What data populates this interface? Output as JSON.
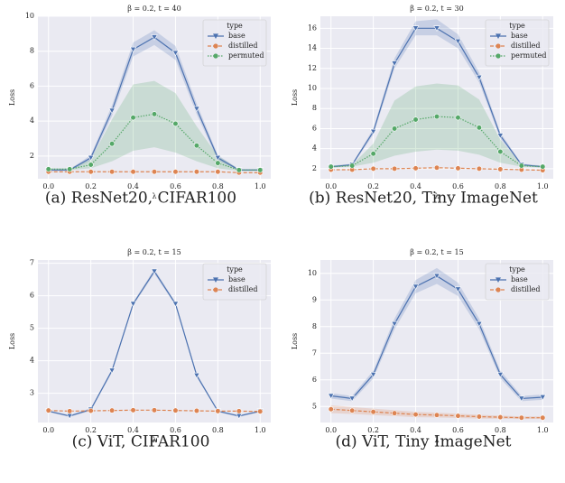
{
  "chart_data": [
    {
      "type": "line",
      "title": "β = 0.2, t = 40",
      "xlabel": "λ",
      "ylabel": "Loss",
      "caption": "(a) ResNet20, CIFAR100",
      "legend_title": "type",
      "legend": "upper right",
      "grid": true,
      "x": [
        0,
        0.1,
        0.2,
        0.3,
        0.4,
        0.5,
        0.6,
        0.7,
        0.8,
        0.9,
        1
      ],
      "xlim": [
        -0.05,
        1.05
      ],
      "xticks": [
        {
          "value": 0,
          "label": "0.0"
        },
        {
          "value": 0.2,
          "label": "0.2"
        },
        {
          "value": 0.4,
          "label": "0.4"
        },
        {
          "value": 0.6,
          "label": "0.6"
        },
        {
          "value": 0.8,
          "label": "0.8"
        },
        {
          "value": 1,
          "label": "1.0"
        }
      ],
      "ylim": [
        0.7,
        10
      ],
      "yticks": [
        2,
        4,
        6,
        8,
        10
      ],
      "series": [
        {
          "name": "base",
          "color": "#4c72b0",
          "marker": "triangle",
          "dash": "solid",
          "values": [
            1.2,
            1.2,
            1.9,
            4.6,
            8.1,
            8.8,
            7.9,
            4.7,
            1.9,
            1.2,
            1.2
          ],
          "band_lower": [
            1.15,
            1.15,
            1.75,
            4.3,
            7.7,
            8.35,
            7.5,
            4.4,
            1.75,
            1.15,
            1.15
          ],
          "band_upper": [
            1.25,
            1.25,
            2.05,
            4.9,
            8.5,
            9.2,
            8.3,
            5.0,
            2.05,
            1.25,
            1.25
          ]
        },
        {
          "name": "distilled",
          "color": "#dd8452",
          "marker": "circle",
          "dash": "dashed",
          "values": [
            1.1,
            1.1,
            1.1,
            1.1,
            1.1,
            1.1,
            1.1,
            1.1,
            1.1,
            1.05,
            1.05
          ]
        },
        {
          "name": "permuted",
          "color": "#55a868",
          "marker": "circle",
          "dash": "dotted",
          "values": [
            1.25,
            1.25,
            1.5,
            2.7,
            4.2,
            4.4,
            3.85,
            2.6,
            1.6,
            1.2,
            1.2
          ],
          "band_lower": [
            1.2,
            1.2,
            1.3,
            1.7,
            2.3,
            2.5,
            2.2,
            1.7,
            1.3,
            1.15,
            1.15
          ],
          "band_upper": [
            1.3,
            1.3,
            1.8,
            4.1,
            6.1,
            6.3,
            5.6,
            3.7,
            2.0,
            1.25,
            1.25
          ]
        }
      ]
    },
    {
      "type": "line",
      "title": "β = 0.2, t = 30",
      "xlabel": "λ",
      "ylabel": "Loss",
      "caption": "(b) ResNet20, Tiny ImageNet",
      "legend_title": "type",
      "legend": "upper right",
      "grid": true,
      "x": [
        0,
        0.1,
        0.2,
        0.3,
        0.4,
        0.5,
        0.6,
        0.7,
        0.8,
        0.9,
        1
      ],
      "xlim": [
        -0.05,
        1.05
      ],
      "xticks": [
        {
          "value": 0,
          "label": "0.0"
        },
        {
          "value": 0.2,
          "label": "0.2"
        },
        {
          "value": 0.4,
          "label": "0.4"
        },
        {
          "value": 0.6,
          "label": "0.6"
        },
        {
          "value": 0.8,
          "label": "0.8"
        },
        {
          "value": 1,
          "label": "1.0"
        }
      ],
      "ylim": [
        1,
        17.2
      ],
      "yticks": [
        2,
        4,
        6,
        8,
        10,
        12,
        14,
        16
      ],
      "series": [
        {
          "name": "base",
          "color": "#4c72b0",
          "marker": "triangle",
          "dash": "solid",
          "values": [
            2.2,
            2.4,
            5.7,
            12.5,
            16,
            16,
            14.7,
            11.1,
            5.3,
            2.4,
            2.2
          ],
          "band_lower": [
            2.1,
            2.3,
            5.4,
            12.0,
            15.3,
            15.3,
            14.0,
            10.6,
            5.0,
            2.3,
            2.1
          ],
          "band_upper": [
            2.3,
            2.5,
            6.0,
            13.0,
            16.7,
            16.9,
            15.4,
            11.6,
            5.6,
            2.5,
            2.3
          ]
        },
        {
          "name": "distilled",
          "color": "#dd8452",
          "marker": "circle",
          "dash": "dashed",
          "values": [
            1.9,
            1.9,
            2.0,
            2.0,
            2.05,
            2.1,
            2.05,
            2.0,
            1.95,
            1.9,
            1.85
          ]
        },
        {
          "name": "permuted",
          "color": "#55a868",
          "marker": "circle",
          "dash": "dotted",
          "values": [
            2.2,
            2.3,
            3.5,
            6.0,
            6.9,
            7.2,
            7.1,
            6.1,
            3.7,
            2.3,
            2.2
          ],
          "band_lower": [
            2.1,
            2.2,
            2.6,
            3.3,
            3.7,
            3.9,
            3.8,
            3.4,
            2.6,
            2.2,
            2.1
          ],
          "band_upper": [
            2.3,
            2.4,
            4.5,
            8.8,
            10.2,
            10.5,
            10.3,
            8.9,
            4.9,
            2.4,
            2.3
          ]
        }
      ]
    },
    {
      "type": "line",
      "title": "β = 0.2, t = 15",
      "xlabel": "λ",
      "ylabel": "Loss",
      "caption": "(c) ViT, CIFAR100",
      "legend_title": "type",
      "legend": "upper right",
      "grid": true,
      "x": [
        0,
        0.1,
        0.2,
        0.3,
        0.4,
        0.5,
        0.6,
        0.7,
        0.8,
        0.9,
        1
      ],
      "xlim": [
        -0.05,
        1.05
      ],
      "xticks": [
        {
          "value": 0,
          "label": "0.0"
        },
        {
          "value": 0.2,
          "label": "0.2"
        },
        {
          "value": 0.4,
          "label": "0.4"
        },
        {
          "value": 0.6,
          "label": "0.6"
        },
        {
          "value": 0.8,
          "label": "0.8"
        },
        {
          "value": 1,
          "label": "1.0"
        }
      ],
      "ylim": [
        2.1,
        7.1
      ],
      "yticks": [
        3,
        4,
        5,
        6,
        7
      ],
      "series": [
        {
          "name": "base",
          "color": "#4c72b0",
          "marker": "triangle",
          "dash": "solid",
          "values": [
            2.45,
            2.3,
            2.5,
            3.7,
            5.75,
            6.75,
            5.75,
            3.55,
            2.45,
            2.3,
            2.45
          ],
          "band_lower": [
            2.42,
            2.27,
            2.46,
            3.65,
            5.7,
            6.68,
            5.7,
            3.5,
            2.42,
            2.27,
            2.42
          ],
          "band_upper": [
            2.48,
            2.33,
            2.54,
            3.75,
            5.8,
            6.82,
            5.8,
            3.6,
            2.48,
            2.33,
            2.48
          ]
        },
        {
          "name": "distilled",
          "color": "#dd8452",
          "marker": "circle",
          "dash": "dashed",
          "values": [
            2.47,
            2.45,
            2.46,
            2.47,
            2.48,
            2.48,
            2.47,
            2.46,
            2.45,
            2.45,
            2.44
          ]
        }
      ]
    },
    {
      "type": "line",
      "title": "β = 0.2, t = 15",
      "xlabel": "λ",
      "ylabel": "Loss",
      "caption": "(d) ViT, Tiny ImageNet",
      "legend_title": "type",
      "legend": "upper right",
      "grid": true,
      "x": [
        0,
        0.1,
        0.2,
        0.3,
        0.4,
        0.5,
        0.6,
        0.7,
        0.8,
        0.9,
        1
      ],
      "xlim": [
        -0.05,
        1.05
      ],
      "xticks": [
        {
          "value": 0,
          "label": "0.0"
        },
        {
          "value": 0.2,
          "label": "0.2"
        },
        {
          "value": 0.4,
          "label": "0.4"
        },
        {
          "value": 0.6,
          "label": "0.6"
        },
        {
          "value": 0.8,
          "label": "0.8"
        },
        {
          "value": 1,
          "label": "1.0"
        }
      ],
      "ylim": [
        4.4,
        10.5
      ],
      "yticks": [
        5,
        6,
        7,
        8,
        9,
        10
      ],
      "series": [
        {
          "name": "base",
          "color": "#4c72b0",
          "marker": "triangle",
          "dash": "solid",
          "values": [
            5.4,
            5.3,
            6.2,
            8.1,
            9.5,
            9.9,
            9.4,
            8.1,
            6.2,
            5.3,
            5.35
          ],
          "band_lower": [
            5.3,
            5.2,
            6.05,
            7.9,
            9.25,
            9.6,
            9.15,
            7.9,
            6.05,
            5.2,
            5.25
          ],
          "band_upper": [
            5.5,
            5.4,
            6.35,
            8.3,
            9.75,
            10.2,
            9.65,
            8.3,
            6.35,
            5.4,
            5.45
          ]
        },
        {
          "name": "distilled",
          "color": "#dd8452",
          "marker": "circle",
          "dash": "dashed",
          "values": [
            4.9,
            4.85,
            4.8,
            4.75,
            4.7,
            4.68,
            4.65,
            4.62,
            4.6,
            4.58,
            4.58
          ],
          "band_lower": [
            4.75,
            4.72,
            4.68,
            4.64,
            4.6,
            4.59,
            4.57,
            4.55,
            4.54,
            4.53,
            4.53
          ],
          "band_upper": [
            5.05,
            4.98,
            4.92,
            4.86,
            4.8,
            4.77,
            4.73,
            4.69,
            4.66,
            4.63,
            4.63
          ]
        }
      ]
    }
  ]
}
